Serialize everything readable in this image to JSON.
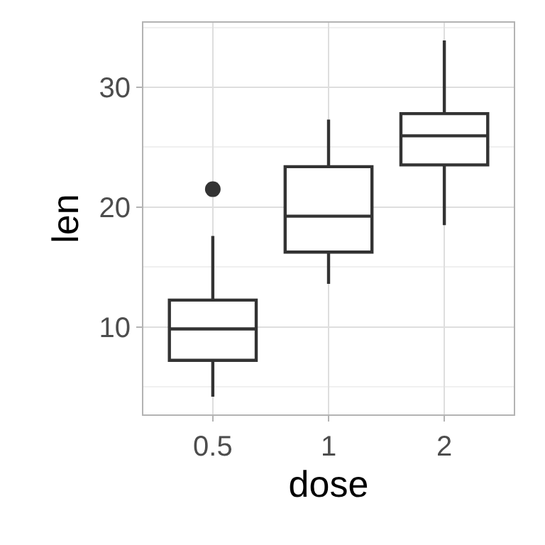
{
  "chart_data": {
    "type": "box",
    "xlabel": "dose",
    "ylabel": "len",
    "categories": [
      "0.5",
      "1",
      "2"
    ],
    "boxes": [
      {
        "low": 4.2,
        "q1": 7.225,
        "median": 9.85,
        "q3": 12.25,
        "high": 17.6,
        "outliers": [
          21.5
        ]
      },
      {
        "low": 13.6,
        "q1": 16.25,
        "median": 19.25,
        "q3": 23.375,
        "high": 27.3
      },
      {
        "low": 18.5,
        "q1": 23.525,
        "median": 25.95,
        "q3": 27.8,
        "high": 33.9
      }
    ],
    "color": "#333333",
    "ylim": [
      2.715,
      35.385
    ],
    "yticks": [
      10,
      20,
      30
    ],
    "grid": true
  }
}
